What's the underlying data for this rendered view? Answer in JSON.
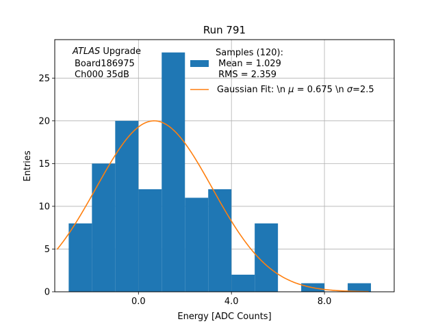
{
  "chart_data": {
    "type": "bar",
    "title": "Run 791",
    "xlabel": "Energy [ADC Counts]",
    "ylabel": "Entries",
    "xlim": [
      -3.6,
      11.0
    ],
    "ylim": [
      0,
      29.5
    ],
    "xticks": [
      0,
      4,
      8
    ],
    "xtick_labels": [
      "0.0",
      "4.0",
      "8.0"
    ],
    "yticks": [
      0,
      5,
      10,
      15,
      20,
      25
    ],
    "ytick_labels": [
      "0",
      "5",
      "10",
      "15",
      "20",
      "25"
    ],
    "grid": true,
    "annotation": {
      "line1_italic": "ATLAS",
      "line1_rest": " Upgrade",
      "line2": "Board186975",
      "line3": "Ch000 35dB"
    },
    "histogram": {
      "bin_edges": [
        -3,
        -2,
        -1,
        0,
        1,
        2,
        3,
        4,
        5,
        6,
        7,
        8,
        9,
        10
      ],
      "counts": [
        8,
        15,
        20,
        12,
        28,
        11,
        12,
        2,
        8,
        0,
        1,
        0,
        1
      ],
      "color": "#1f77b4",
      "legend_lines": [
        "Samples (120):",
        " Mean = 1.029",
        " RMS = 2.359"
      ]
    },
    "fit": {
      "mu": 0.675,
      "sigma": 2.5,
      "amplitude": 20,
      "x_range": [
        -3.5,
        9.9
      ],
      "color": "#ff7f0e",
      "legend_prefix": "Gaussian Fit: \\n ",
      "legend_mu_sym": "μ",
      "legend_mid": " = 0.675 \\n ",
      "legend_sigma_sym": "σ",
      "legend_suffix": "=2.5"
    },
    "legend_position": "top-right"
  }
}
